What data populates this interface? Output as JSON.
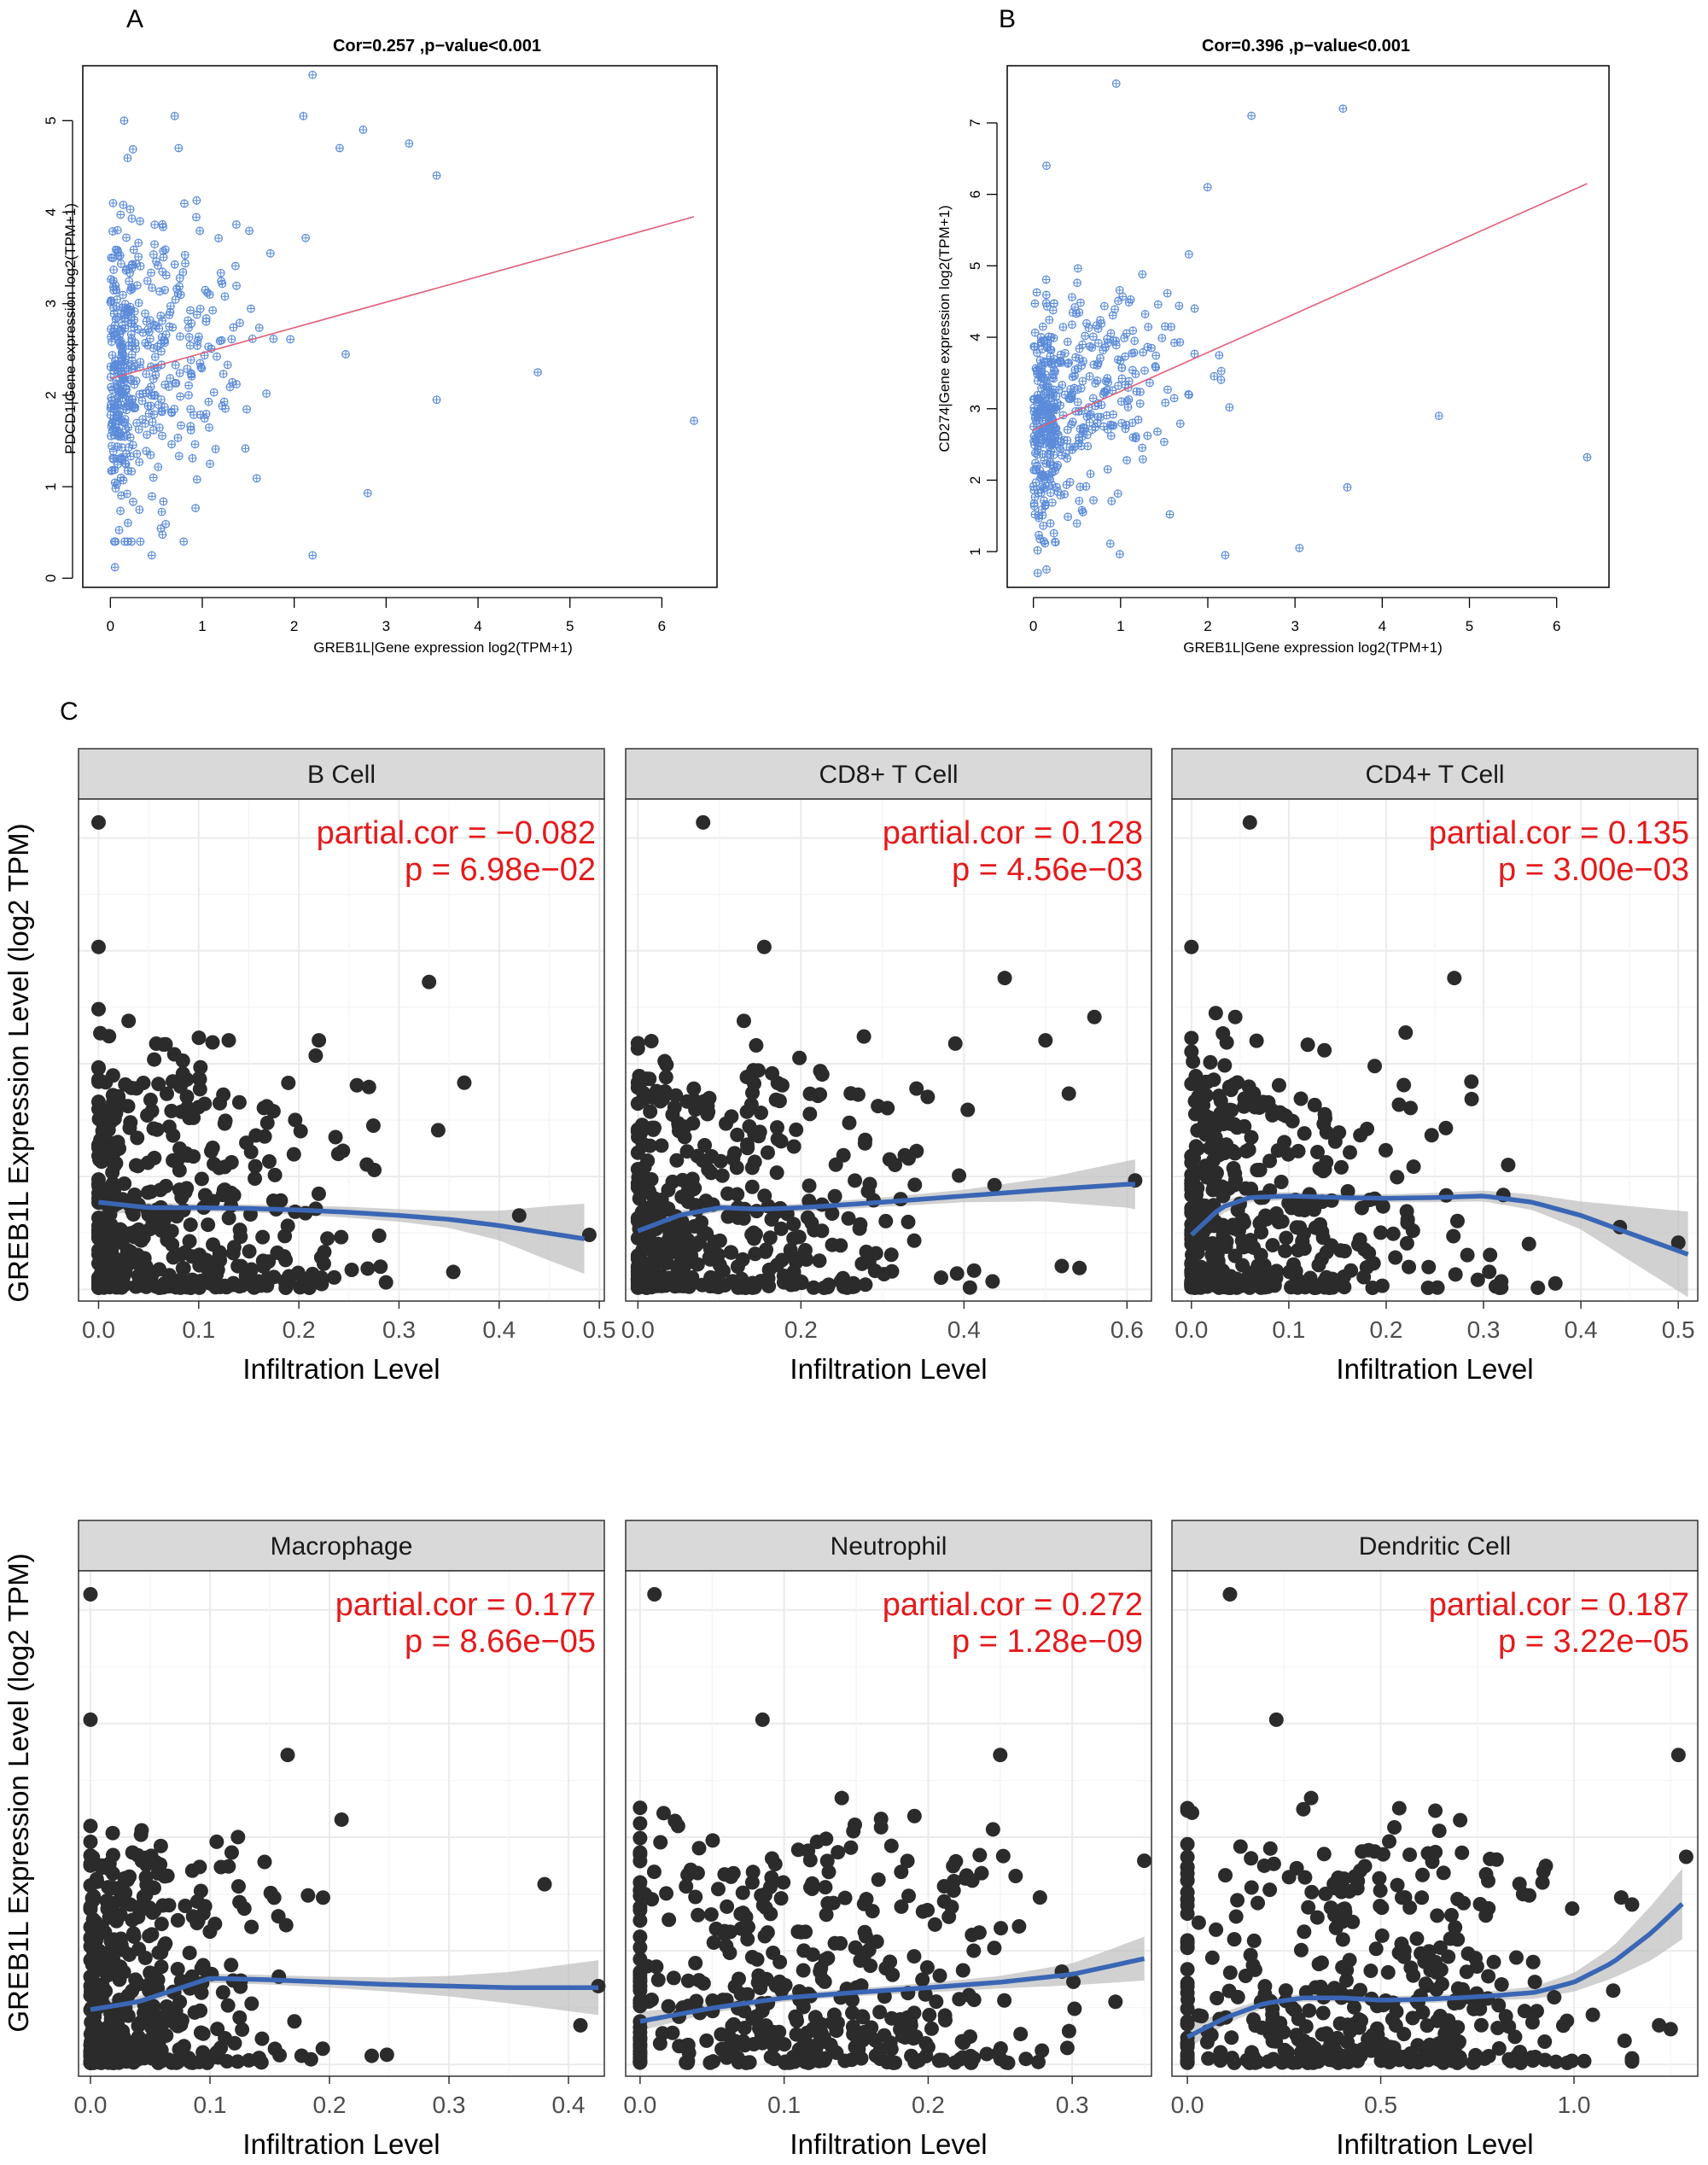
{
  "panel_labels": [
    "A",
    "B",
    "C"
  ],
  "colors": {
    "scatter_point": "#5b8bd9",
    "scatter_fit": "#e0607a",
    "facet_point": "#2b2b2b",
    "facet_fit": "#3a66b5",
    "facet_band": "#bdbdbd",
    "strip_bg": "#d9d9d9",
    "annotation": "#e41a1c"
  },
  "chart_data": [
    {
      "id": "A",
      "type": "scatter",
      "title": "Cor=0.257 ,p−value<0.001",
      "xlabel": "GREB1L|Gene expression log2(TPM+1)",
      "ylabel": "PDCD1|Gene expression log2(TPM+1)",
      "xlim": [
        -0.3,
        6.6
      ],
      "ylim": [
        -0.1,
        5.6
      ],
      "xticks": [
        0,
        1,
        2,
        3,
        4,
        5,
        6
      ],
      "yticks": [
        0,
        1,
        2,
        3,
        4,
        5
      ],
      "fit": {
        "x": [
          0,
          6.35
        ],
        "y": [
          2.18,
          3.95
        ]
      },
      "outliers": [
        [
          2.2,
          5.5
        ],
        [
          2.1,
          5.05
        ],
        [
          0.15,
          5.0
        ],
        [
          0.7,
          5.05
        ],
        [
          2.75,
          4.9
        ],
        [
          3.25,
          4.75
        ],
        [
          3.55,
          4.4
        ],
        [
          4.65,
          2.25
        ],
        [
          6.35,
          1.72
        ],
        [
          3.55,
          1.95
        ],
        [
          2.8,
          0.93
        ],
        [
          2.2,
          0.25
        ],
        [
          0.45,
          0.25
        ],
        [
          0.05,
          0.12
        ]
      ],
      "cloud": {
        "n": 470,
        "x_mean": 0.85,
        "x_sd": 0.75,
        "x_max": 3.2,
        "y_intercept": 2.2,
        "y_slope": 0.27,
        "y_sd": 0.95,
        "y_min": 0.4,
        "y_max": 4.7,
        "seed": 11
      }
    },
    {
      "id": "B",
      "type": "scatter",
      "title": "Cor=0.396 ,p−value<0.001",
      "xlabel": "GREB1L|Gene expression log2(TPM+1)",
      "ylabel": "CD274|Gene expression log2(TPM+1)",
      "xlim": [
        -0.3,
        6.6
      ],
      "ylim": [
        0.5,
        7.8
      ],
      "xticks": [
        0,
        1,
        2,
        3,
        4,
        5,
        6
      ],
      "yticks": [
        1,
        2,
        3,
        4,
        5,
        6,
        7
      ],
      "fit": {
        "x": [
          0,
          6.35
        ],
        "y": [
          2.7,
          6.15
        ]
      },
      "outliers": [
        [
          0.95,
          7.55
        ],
        [
          3.55,
          7.2
        ],
        [
          2.5,
          7.1
        ],
        [
          0.15,
          6.4
        ],
        [
          4.65,
          2.9
        ],
        [
          6.35,
          2.32
        ],
        [
          3.05,
          1.05
        ],
        [
          2.2,
          0.95
        ],
        [
          0.15,
          0.75
        ],
        [
          0.05,
          0.7
        ],
        [
          3.6,
          1.9
        ]
      ],
      "cloud": {
        "n": 480,
        "x_mean": 0.85,
        "x_sd": 0.8,
        "x_max": 3.4,
        "y_intercept": 2.75,
        "y_slope": 0.55,
        "y_sd": 0.9,
        "y_min": 0.8,
        "y_max": 6.9,
        "seed": 23
      }
    },
    {
      "id": "C",
      "type": "scatter",
      "title": "",
      "ylabel": "GREB1L Expression Level (log2 TPM)",
      "xlabel": "Infiltration Level",
      "ylim": [
        -0.15,
        6.3
      ],
      "facets": [
        {
          "name": "B Cell",
          "partial_cor_text": "partial.cor = −0.082",
          "p_text": "p = 6.98e−02",
          "xlim": [
            -0.02,
            0.505
          ],
          "xticks": [
            0.0,
            0.1,
            0.2,
            0.3,
            0.4,
            0.5
          ],
          "xtick_labels": [
            "0.0",
            "0.1",
            "0.2",
            "0.3",
            "0.4",
            "0.5"
          ],
          "fit_x": [
            0.0,
            0.05,
            0.1,
            0.15,
            0.2,
            0.25,
            0.3,
            0.35,
            0.4,
            0.45,
            0.485
          ],
          "fit_y": [
            1.12,
            1.05,
            1.05,
            1.04,
            1.02,
            0.99,
            0.95,
            0.9,
            0.82,
            0.72,
            0.65
          ],
          "band_halfwidth": [
            0.15,
            0.06,
            0.05,
            0.05,
            0.06,
            0.07,
            0.08,
            0.11,
            0.19,
            0.35,
            0.45
          ],
          "outliers": [
            [
              0.0,
              6.0
            ],
            [
              0.0,
              4.4
            ],
            [
              0.33,
              3.95
            ],
            [
              0.0,
              3.6
            ],
            [
              0.03,
              3.45
            ],
            [
              0.13,
              3.2
            ],
            [
              0.22,
              3.2
            ],
            [
              0.27,
              2.6
            ],
            [
              0.42,
              0.95
            ],
            [
              0.49,
              0.7
            ]
          ],
          "cloud": {
            "n": 430,
            "x_max": 0.46,
            "x_spread": 0.13,
            "seed": 31
          }
        },
        {
          "name": "CD8+ T Cell",
          "partial_cor_text": "partial.cor = 0.128",
          "p_text": "p = 4.56e−03",
          "xlim": [
            -0.015,
            0.63
          ],
          "xticks": [
            0.0,
            0.2,
            0.4,
            0.6
          ],
          "xtick_labels": [
            "0.0",
            "0.2",
            "0.4",
            "0.6"
          ],
          "fit_x": [
            0.0,
            0.05,
            0.1,
            0.15,
            0.2,
            0.3,
            0.4,
            0.5,
            0.6,
            0.61
          ],
          "fit_y": [
            0.75,
            0.95,
            1.05,
            1.03,
            1.05,
            1.12,
            1.2,
            1.28,
            1.35,
            1.35
          ],
          "band_halfwidth": [
            0.12,
            0.06,
            0.05,
            0.05,
            0.05,
            0.06,
            0.08,
            0.15,
            0.3,
            0.32
          ],
          "outliers": [
            [
              0.08,
              6.0
            ],
            [
              0.155,
              4.4
            ],
            [
              0.45,
              4.0
            ],
            [
              0.13,
              3.45
            ],
            [
              0.56,
              3.5
            ],
            [
              0.5,
              3.2
            ],
            [
              0.61,
              1.4
            ],
            [
              0.52,
              0.3
            ]
          ],
          "cloud": {
            "n": 430,
            "x_max": 0.55,
            "x_spread": 0.18,
            "seed": 47
          }
        },
        {
          "name": "CD4+ T Cell",
          "partial_cor_text": "partial.cor = 0.135",
          "p_text": "p = 3.00e−03",
          "xlim": [
            -0.02,
            0.52
          ],
          "xticks": [
            0.0,
            0.1,
            0.2,
            0.3,
            0.4,
            0.5
          ],
          "xtick_labels": [
            "0.0",
            "0.1",
            "0.2",
            "0.3",
            "0.4",
            "0.5"
          ],
          "fit_x": [
            0.0,
            0.03,
            0.06,
            0.1,
            0.15,
            0.2,
            0.25,
            0.3,
            0.35,
            0.4,
            0.45,
            0.51
          ],
          "fit_y": [
            0.7,
            1.05,
            1.18,
            1.2,
            1.18,
            1.17,
            1.18,
            1.2,
            1.12,
            0.95,
            0.72,
            0.45
          ],
          "band_halfwidth": [
            0.15,
            0.08,
            0.06,
            0.05,
            0.05,
            0.05,
            0.06,
            0.07,
            0.1,
            0.18,
            0.35,
            0.55
          ],
          "outliers": [
            [
              0.06,
              6.0
            ],
            [
              0.0,
              4.4
            ],
            [
              0.27,
              4.0
            ],
            [
              0.025,
              3.55
            ],
            [
              0.045,
              3.5
            ],
            [
              0.22,
              3.3
            ],
            [
              0.44,
              0.8
            ],
            [
              0.5,
              0.6
            ]
          ],
          "cloud": {
            "n": 430,
            "x_max": 0.43,
            "x_spread": 0.13,
            "seed": 59
          }
        },
        {
          "name": "Macrophage",
          "partial_cor_text": "partial.cor = 0.177",
          "p_text": "p = 8.66e−05",
          "xlim": [
            -0.01,
            0.43
          ],
          "xticks": [
            0.0,
            0.1,
            0.2,
            0.3,
            0.4
          ],
          "xtick_labels": [
            "0.0",
            "0.1",
            "0.2",
            "0.3",
            "0.4"
          ],
          "fit_x": [
            0.0,
            0.04,
            0.07,
            0.1,
            0.15,
            0.2,
            0.25,
            0.3,
            0.35,
            0.4,
            0.425
          ],
          "fit_y": [
            0.7,
            0.8,
            0.95,
            1.1,
            1.08,
            1.05,
            1.02,
            1.0,
            0.98,
            0.98,
            0.98
          ],
          "band_halfwidth": [
            0.12,
            0.07,
            0.06,
            0.06,
            0.06,
            0.07,
            0.09,
            0.13,
            0.2,
            0.3,
            0.35
          ],
          "outliers": [
            [
              0.0,
              6.0
            ],
            [
              0.0,
              4.4
            ],
            [
              0.165,
              3.95
            ],
            [
              0.38,
              2.3
            ],
            [
              0.425,
              1.0
            ],
            [
              0.41,
              0.5
            ]
          ],
          "cloud": {
            "n": 430,
            "x_max": 0.36,
            "x_spread": 0.08,
            "seed": 71
          }
        },
        {
          "name": "Neutrophil",
          "partial_cor_text": "partial.cor = 0.272",
          "p_text": "p = 1.28e−09",
          "xlim": [
            -0.01,
            0.355
          ],
          "xticks": [
            0.0,
            0.1,
            0.2,
            0.3
          ],
          "xtick_labels": [
            "0.0",
            "0.1",
            "0.2",
            "0.3"
          ],
          "fit_x": [
            0.0,
            0.05,
            0.1,
            0.15,
            0.2,
            0.25,
            0.3,
            0.35
          ],
          "fit_y": [
            0.55,
            0.72,
            0.85,
            0.92,
            0.98,
            1.05,
            1.15,
            1.35
          ],
          "band_halfwidth": [
            0.12,
            0.06,
            0.05,
            0.05,
            0.06,
            0.08,
            0.14,
            0.28
          ],
          "outliers": [
            [
              0.01,
              6.0
            ],
            [
              0.085,
              4.4
            ],
            [
              0.25,
              3.95
            ],
            [
              0.14,
              3.4
            ],
            [
              0.245,
              3.0
            ],
            [
              0.35,
              2.6
            ],
            [
              0.33,
              0.8
            ]
          ],
          "cloud": {
            "n": 430,
            "x_mean": 0.12,
            "x_max": 0.33,
            "x_spread": 0.075,
            "seed": 83
          }
        },
        {
          "name": "Dendritic Cell",
          "partial_cor_text": "partial.cor = 0.187",
          "p_text": "p = 3.22e−05",
          "xlim": [
            -0.04,
            1.32
          ],
          "xticks": [
            0.0,
            0.5,
            1.0
          ],
          "xtick_labels": [
            "0.0",
            "0.5",
            "1.0"
          ],
          "fit_x": [
            0.0,
            0.1,
            0.2,
            0.3,
            0.4,
            0.5,
            0.6,
            0.7,
            0.8,
            0.9,
            1.0,
            1.1,
            1.2,
            1.28
          ],
          "fit_y": [
            0.35,
            0.6,
            0.78,
            0.85,
            0.85,
            0.82,
            0.83,
            0.85,
            0.88,
            0.92,
            1.05,
            1.3,
            1.68,
            2.05
          ],
          "band_halfwidth": [
            0.15,
            0.08,
            0.06,
            0.05,
            0.05,
            0.05,
            0.05,
            0.05,
            0.06,
            0.08,
            0.12,
            0.2,
            0.35,
            0.45
          ],
          "outliers": [
            [
              0.11,
              6.0
            ],
            [
              0.23,
              4.4
            ],
            [
              1.27,
              3.95
            ],
            [
              0.32,
              3.4
            ],
            [
              1.29,
              2.65
            ],
            [
              1.25,
              0.45
            ],
            [
              1.22,
              0.5
            ]
          ],
          "cloud": {
            "n": 430,
            "x_mean": 0.45,
            "x_max": 1.15,
            "x_spread": 0.28,
            "seed": 97
          }
        }
      ]
    }
  ]
}
